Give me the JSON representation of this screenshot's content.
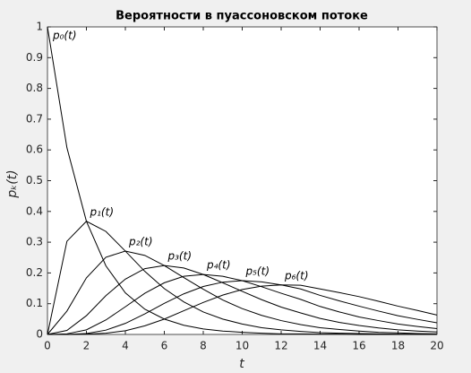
{
  "chart_data": {
    "type": "line",
    "title": "Вероятности в пуассоновском потоке",
    "xlabel": "t",
    "ylabel": "pₖ(t)",
    "x": [
      0,
      1,
      2,
      3,
      4,
      5,
      6,
      7,
      8,
      9,
      10,
      11,
      12,
      13,
      14,
      15,
      16,
      17,
      18,
      19,
      20
    ],
    "series": [
      {
        "name": "p₀(t)",
        "color": "#000000",
        "values": [
          1,
          0.607,
          0.368,
          0.223,
          0.135,
          0.082,
          0.05,
          0.03,
          0.018,
          0.011,
          0.007,
          0.004,
          0.002,
          0.002,
          0.001,
          0.001,
          0,
          0,
          0,
          0,
          0
        ]
      },
      {
        "name": "p₁(t)",
        "color": "#000000",
        "values": [
          0,
          0.303,
          0.368,
          0.335,
          0.271,
          0.205,
          0.149,
          0.106,
          0.073,
          0.05,
          0.034,
          0.022,
          0.015,
          0.01,
          0.006,
          0.004,
          0.003,
          0.002,
          0.001,
          0.001,
          0
        ]
      },
      {
        "name": "p₂(t)",
        "color": "#000000",
        "values": [
          0,
          0.076,
          0.184,
          0.251,
          0.271,
          0.257,
          0.224,
          0.185,
          0.147,
          0.112,
          0.084,
          0.062,
          0.045,
          0.032,
          0.022,
          0.016,
          0.011,
          0.007,
          0.005,
          0.003,
          0.002
        ]
      },
      {
        "name": "p₃(t)",
        "color": "#000000",
        "values": [
          0,
          0.013,
          0.061,
          0.126,
          0.18,
          0.214,
          0.224,
          0.216,
          0.195,
          0.168,
          0.14,
          0.113,
          0.089,
          0.07,
          0.052,
          0.039,
          0.029,
          0.021,
          0.015,
          0.011,
          0.008
        ]
      },
      {
        "name": "p₄(t)",
        "color": "#000000",
        "values": [
          0,
          0.002,
          0.015,
          0.047,
          0.09,
          0.134,
          0.168,
          0.189,
          0.195,
          0.189,
          0.175,
          0.155,
          0.134,
          0.114,
          0.091,
          0.073,
          0.057,
          0.045,
          0.034,
          0.026,
          0.019
        ]
      },
      {
        "name": "p₅(t)",
        "color": "#000000",
        "values": [
          0,
          0,
          0.003,
          0.014,
          0.036,
          0.067,
          0.101,
          0.132,
          0.156,
          0.17,
          0.175,
          0.171,
          0.161,
          0.148,
          0.127,
          0.109,
          0.092,
          0.076,
          0.061,
          0.049,
          0.038
        ]
      },
      {
        "name": "p₆(t)",
        "color": "#000000",
        "values": [
          0,
          0,
          0.001,
          0.004,
          0.012,
          0.028,
          0.05,
          0.077,
          0.104,
          0.128,
          0.146,
          0.157,
          0.161,
          0.16,
          0.148,
          0.136,
          0.123,
          0.108,
          0.092,
          0.078,
          0.063
        ]
      }
    ],
    "xlim": [
      0,
      20
    ],
    "xticks": [
      0,
      2,
      4,
      6,
      8,
      10,
      12,
      14,
      16,
      18,
      20
    ],
    "ylim": [
      0,
      1
    ],
    "yticks": [
      0,
      0.1,
      0.2,
      0.3,
      0.4,
      0.5,
      0.6,
      0.7,
      0.8,
      0.9,
      1
    ],
    "grid": false
  }
}
